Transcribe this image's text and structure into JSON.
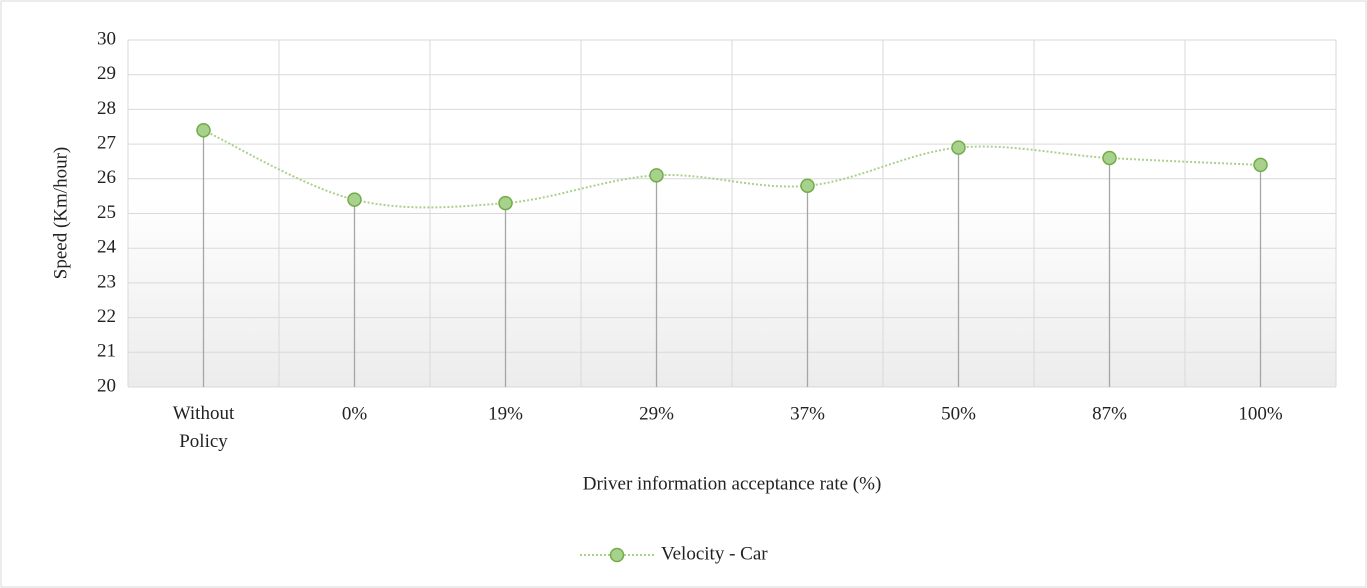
{
  "chart_data": {
    "type": "line",
    "x_label": "Driver information acceptance rate (%)",
    "y_label": "Speed (Km/hour)",
    "categories": [
      "Without Policy",
      "0%",
      "19%",
      "29%",
      "37%",
      "50%",
      "87%",
      "100%"
    ],
    "series": [
      {
        "name": "Velocity - Car",
        "color": "#a9d18e",
        "marker_edge": "#70ad47",
        "values": [
          27.4,
          25.4,
          25.3,
          26.1,
          25.8,
          26.9,
          26.6,
          26.4
        ]
      }
    ],
    "ylim": [
      20,
      30
    ],
    "yticks": [
      20,
      21,
      22,
      23,
      24,
      25,
      26,
      27,
      28,
      29,
      30
    ],
    "grid": true,
    "smooth": true,
    "drop_lines": true,
    "legend": "bottom"
  }
}
